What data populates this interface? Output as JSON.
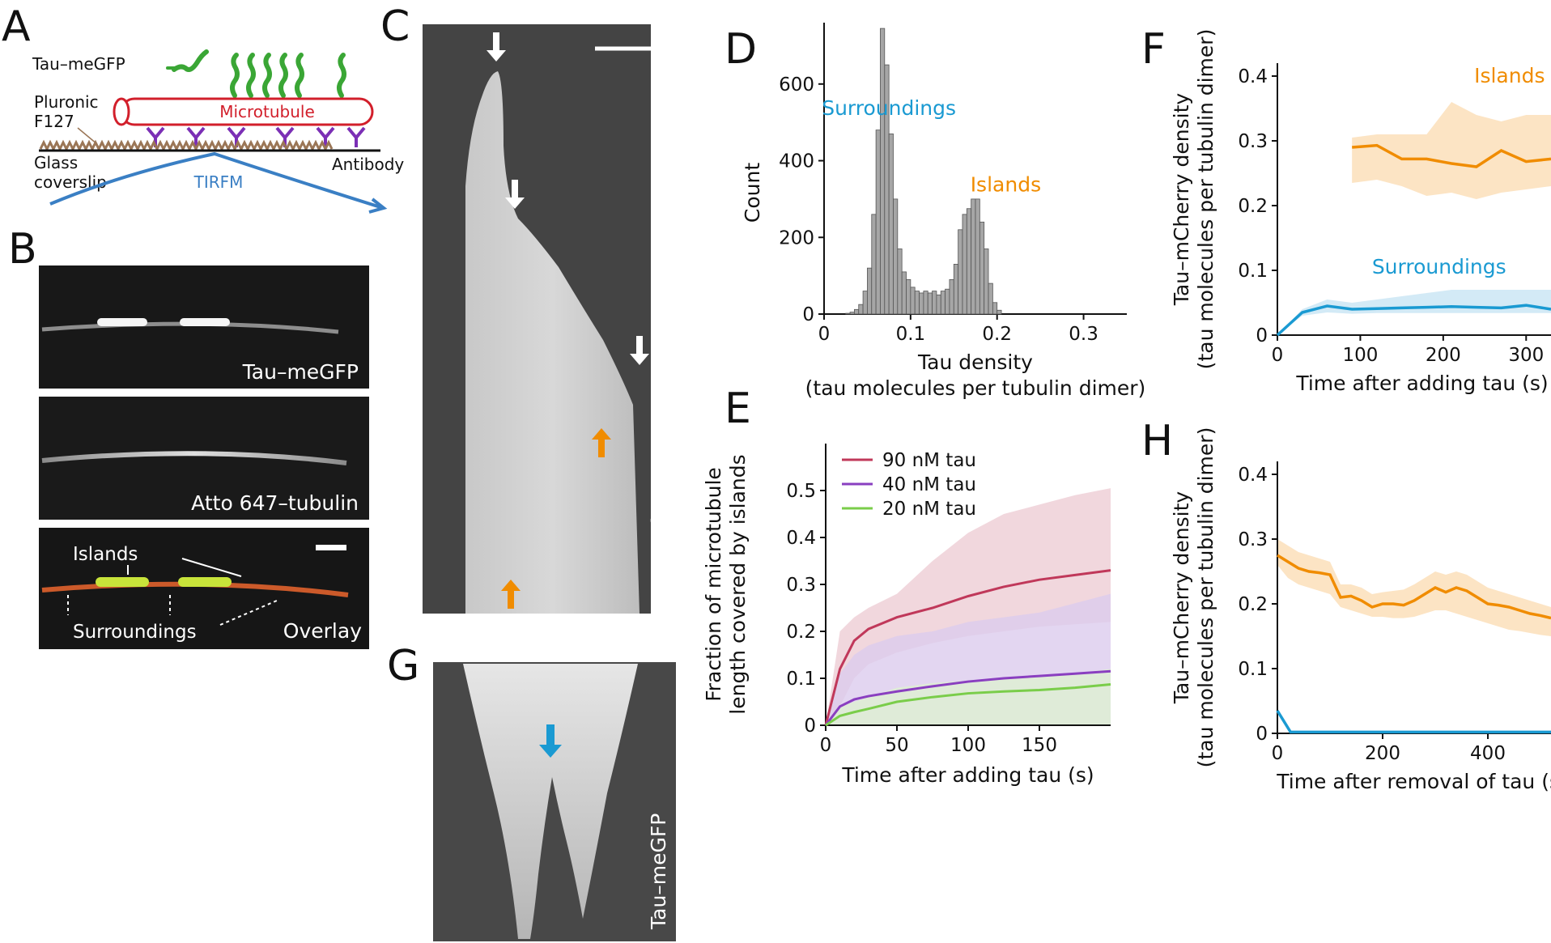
{
  "panels": {
    "A": {
      "label": "A",
      "tau_label": "Tau–meGFP",
      "pluronic_label": [
        "Pluronic",
        "F127"
      ],
      "glass_label": [
        "Glass",
        "coverslip"
      ],
      "microtubule_label": "Microtubule",
      "tirfm_label": "TIRFM",
      "antibody_label": "Antibody"
    },
    "B": {
      "label": "B",
      "img1_caption": "Tau–meGFP",
      "img2_caption": "Atto 647–tubulin",
      "img3_caption": "Overlay",
      "islands_label": "Islands",
      "surroundings_label": "Surroundings"
    },
    "C": {
      "label": "C",
      "caption": "Tau–meGFP"
    },
    "G": {
      "label": "G",
      "caption": "Tau–meGFP"
    },
    "D": {
      "label": "D"
    },
    "E": {
      "label": "E"
    },
    "F": {
      "label": "F"
    },
    "H": {
      "label": "H"
    }
  },
  "chart_data": [
    {
      "id": "D",
      "type": "bar",
      "xlabel": [
        "Tau density",
        "(tau molecules per tubulin dimer)"
      ],
      "ylabel": "Count",
      "xlim": [
        0,
        0.35
      ],
      "ylim": [
        0,
        760
      ],
      "xticks": [
        0,
        0.1,
        0.2,
        0.3
      ],
      "xtick_labels": [
        "0",
        "0.1",
        "0.2",
        "0.3"
      ],
      "yticks": [
        0,
        200,
        400,
        600
      ],
      "bin_width": 0.005,
      "bin_start": 0.025,
      "values": [
        2,
        5,
        12,
        25,
        60,
        120,
        260,
        480,
        745,
        650,
        470,
        300,
        170,
        110,
        90,
        70,
        60,
        55,
        60,
        55,
        60,
        50,
        60,
        65,
        90,
        130,
        220,
        260,
        275,
        300,
        300,
        240,
        170,
        80,
        30,
        10
      ],
      "annotations": [
        {
          "text": "Surroundings",
          "x": 0.075,
          "y": 600,
          "color": "#1a9ad2"
        },
        {
          "text": "Islands",
          "x": 0.21,
          "y": 400,
          "color": "#f08c00"
        }
      ]
    },
    {
      "id": "E",
      "type": "area",
      "xlabel": "Time after adding tau (s)",
      "ylabel": [
        "Fraction of microtubule",
        "length covered by islands"
      ],
      "xlim": [
        0,
        200
      ],
      "ylim": [
        0,
        0.6
      ],
      "xticks": [
        0,
        50,
        100,
        150
      ],
      "yticks": [
        0,
        0.1,
        0.2,
        0.3,
        0.4,
        0.5
      ],
      "x": [
        0,
        10,
        20,
        30,
        50,
        75,
        100,
        125,
        150,
        175,
        200
      ],
      "series": [
        {
          "name": "90 nM tau",
          "color": "#c0385a",
          "band": "#edcdd4",
          "mean": [
            0,
            0.12,
            0.18,
            0.205,
            0.23,
            0.25,
            0.275,
            0.295,
            0.31,
            0.32,
            0.33
          ],
          "lo": [
            0,
            0.04,
            0.1,
            0.13,
            0.155,
            0.175,
            0.19,
            0.2,
            0.21,
            0.215,
            0.22
          ],
          "hi": [
            0,
            0.2,
            0.23,
            0.25,
            0.28,
            0.35,
            0.41,
            0.45,
            0.47,
            0.49,
            0.505
          ]
        },
        {
          "name": "40 nM tau",
          "color": "#8a3fc0",
          "band": "#dcccee",
          "mean": [
            0,
            0.04,
            0.055,
            0.062,
            0.072,
            0.083,
            0.093,
            0.1,
            0.105,
            0.11,
            0.115
          ],
          "lo": [
            0,
            0.0,
            0.0,
            0.0,
            0.0,
            0.0,
            0.0,
            0.0,
            0.0,
            0.0,
            0.0
          ],
          "hi": [
            0,
            0.11,
            0.15,
            0.17,
            0.19,
            0.2,
            0.22,
            0.23,
            0.24,
            0.26,
            0.28
          ]
        },
        {
          "name": "20 nM tau",
          "color": "#7acd4a",
          "band": "#ddf0d2",
          "mean": [
            0,
            0.02,
            0.028,
            0.035,
            0.05,
            0.06,
            0.068,
            0.072,
            0.075,
            0.08,
            0.087
          ],
          "lo": [
            0,
            0.0,
            0.0,
            0.0,
            0.0,
            0.0,
            0.0,
            0.0,
            0.0,
            0.0,
            0.0
          ],
          "hi": [
            0,
            0.04,
            0.05,
            0.06,
            0.08,
            0.09,
            0.095,
            0.1,
            0.105,
            0.11,
            0.12
          ]
        }
      ]
    },
    {
      "id": "F",
      "type": "line",
      "xlabel": "Time after adding tau (s)",
      "ylabel": [
        "Tau–mCherry density",
        "(tau molecules per tubulin dimer)"
      ],
      "xlim": [
        0,
        330
      ],
      "ylim": [
        0,
        0.42
      ],
      "xticks": [
        0,
        100,
        200,
        300
      ],
      "yticks": [
        0,
        0.1,
        0.2,
        0.3,
        0.4
      ],
      "series": [
        {
          "name": "Islands",
          "color": "#f08c00",
          "band": "#fbdfba",
          "x": [
            90,
            120,
            150,
            180,
            210,
            240,
            270,
            300,
            330
          ],
          "mean": [
            0.29,
            0.293,
            0.272,
            0.272,
            0.265,
            0.26,
            0.285,
            0.268,
            0.272
          ],
          "lo": [
            0.235,
            0.24,
            0.23,
            0.215,
            0.22,
            0.21,
            0.22,
            0.225,
            0.23
          ],
          "hi": [
            0.305,
            0.31,
            0.31,
            0.31,
            0.36,
            0.34,
            0.33,
            0.34,
            0.34
          ]
        },
        {
          "name": "Surroundings",
          "color": "#1a9ad2",
          "band": "#cbe6f5",
          "x": [
            0,
            30,
            60,
            90,
            120,
            150,
            180,
            210,
            240,
            270,
            300,
            330
          ],
          "mean": [
            0.0,
            0.035,
            0.045,
            0.04,
            0.041,
            0.042,
            0.043,
            0.044,
            0.043,
            0.042,
            0.046,
            0.04
          ],
          "lo": [
            0.0,
            0.03,
            0.035,
            0.033,
            0.034,
            0.034,
            0.034,
            0.034,
            0.034,
            0.034,
            0.034,
            0.034
          ],
          "hi": [
            0.0,
            0.04,
            0.055,
            0.05,
            0.055,
            0.06,
            0.065,
            0.07,
            0.07,
            0.07,
            0.07,
            0.07
          ]
        }
      ]
    },
    {
      "id": "H",
      "type": "line",
      "xlabel": "Time after removal of tau (s)",
      "ylabel": [
        "Tau–mCherry density",
        "(tau molecules per tubulin dimer)"
      ],
      "xlim": [
        0,
        520
      ],
      "ylim": [
        0,
        0.42
      ],
      "xticks": [
        0,
        200,
        400
      ],
      "yticks": [
        0,
        0.1,
        0.2,
        0.3,
        0.4
      ],
      "series": [
        {
          "name": "Islands",
          "color": "#f08c00",
          "band": "#fbdfba",
          "x": [
            0,
            20,
            40,
            60,
            80,
            100,
            120,
            140,
            160,
            180,
            200,
            220,
            240,
            260,
            280,
            300,
            320,
            340,
            360,
            380,
            400,
            420,
            440,
            460,
            480,
            500,
            520
          ],
          "mean": [
            0.275,
            0.265,
            0.255,
            0.25,
            0.248,
            0.245,
            0.21,
            0.212,
            0.205,
            0.195,
            0.2,
            0.2,
            0.198,
            0.205,
            0.215,
            0.225,
            0.218,
            0.225,
            0.22,
            0.21,
            0.2,
            0.198,
            0.195,
            0.19,
            0.185,
            0.182,
            0.178
          ],
          "lo": [
            0.26,
            0.24,
            0.23,
            0.225,
            0.22,
            0.215,
            0.195,
            0.19,
            0.185,
            0.18,
            0.18,
            0.178,
            0.178,
            0.18,
            0.185,
            0.19,
            0.19,
            0.185,
            0.18,
            0.175,
            0.17,
            0.165,
            0.16,
            0.158,
            0.155,
            0.152,
            0.15
          ],
          "hi": [
            0.3,
            0.29,
            0.28,
            0.275,
            0.27,
            0.265,
            0.23,
            0.23,
            0.225,
            0.215,
            0.218,
            0.22,
            0.222,
            0.23,
            0.24,
            0.25,
            0.245,
            0.25,
            0.245,
            0.235,
            0.225,
            0.22,
            0.215,
            0.21,
            0.205,
            0.2,
            0.195
          ]
        },
        {
          "name": "Surroundings",
          "color": "#1a9ad2",
          "x": [
            0,
            25,
            50,
            100,
            150,
            200,
            250,
            300,
            350,
            400,
            450,
            500,
            520
          ],
          "mean": [
            0.035,
            0.002,
            0.002,
            0.002,
            0.002,
            0.002,
            0.002,
            0.002,
            0.002,
            0.002,
            0.002,
            0.002,
            0.002
          ]
        }
      ]
    }
  ]
}
